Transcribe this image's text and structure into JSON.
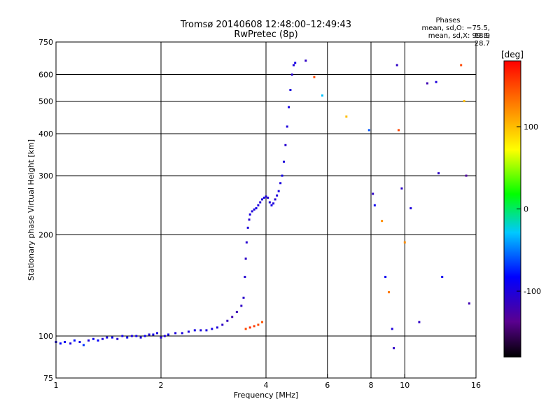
{
  "title": "Tromsø 20140608 12:48:00–12:49:43",
  "subtitle": "RwPretec (8p)",
  "stats": {
    "heading": "Phases",
    "line1": "mean, sd,O: −75.5, 18.9",
    "line2": "mean, sd,X:  99.8, 28.7"
  },
  "chart_data": {
    "type": "scatter",
    "x_scale": "log",
    "y_scale": "log",
    "xlabel": "Frequency [MHz]",
    "ylabel": "Stationary phase Virtual Height [km]",
    "xlim": [
      1,
      16
    ],
    "ylim": [
      75,
      750
    ],
    "xticks": [
      1,
      2,
      4,
      6,
      8,
      10,
      16
    ],
    "yticks": [
      75,
      100,
      200,
      300,
      400,
      500,
      600,
      750
    ],
    "grid_x": [
      2,
      4,
      6,
      8,
      10
    ],
    "grid_y": [
      100,
      200,
      300,
      400,
      500,
      600
    ],
    "colorbar": {
      "label": "[deg]",
      "ticks": [
        -100,
        0,
        100
      ],
      "range": [
        -180,
        180
      ],
      "colors": [
        "#000000",
        "#5a0090",
        "#0000ff",
        "#00c8ff",
        "#00ff00",
        "#ffff00",
        "#ff8000",
        "#ff0000"
      ]
    },
    "series": [
      {
        "mode": "E-layer trace",
        "points": [
          [
            1.0,
            96,
            -95
          ],
          [
            1.03,
            95,
            -85
          ],
          [
            1.06,
            96,
            -90
          ],
          [
            1.1,
            95,
            -100
          ],
          [
            1.13,
            97,
            -80
          ],
          [
            1.17,
            96,
            -95
          ],
          [
            1.2,
            94,
            -70
          ],
          [
            1.24,
            97,
            -100
          ],
          [
            1.28,
            98,
            -90
          ],
          [
            1.32,
            97,
            -85
          ],
          [
            1.36,
            98,
            -100
          ],
          [
            1.4,
            99,
            -95
          ],
          [
            1.45,
            99,
            -90
          ],
          [
            1.5,
            98,
            -105
          ],
          [
            1.55,
            100,
            -95
          ],
          [
            1.6,
            99,
            -88
          ],
          [
            1.65,
            100,
            -100
          ],
          [
            1.7,
            100,
            -92
          ],
          [
            1.75,
            99,
            -97
          ],
          [
            1.8,
            100,
            -90
          ],
          [
            1.85,
            101,
            -100
          ],
          [
            1.9,
            101,
            -95
          ],
          [
            1.95,
            102,
            -98
          ],
          [
            2.0,
            99,
            -102
          ],
          [
            2.05,
            100,
            -100
          ],
          [
            2.1,
            101,
            -95
          ],
          [
            2.2,
            102,
            -100
          ],
          [
            2.3,
            102,
            -98
          ],
          [
            2.4,
            103,
            -100
          ],
          [
            2.5,
            104,
            -95
          ],
          [
            2.6,
            104,
            -100
          ],
          [
            2.7,
            104,
            -98
          ],
          [
            2.8,
            105,
            -95
          ],
          [
            2.9,
            106,
            -100
          ],
          [
            3.0,
            108,
            -110
          ],
          [
            3.1,
            111,
            -115
          ],
          [
            3.2,
            114,
            -120
          ],
          [
            3.3,
            118,
            -118
          ],
          [
            3.4,
            123,
            -110
          ]
        ]
      },
      {
        "mode": "F-layer trace",
        "points": [
          [
            3.45,
            130,
            -108
          ],
          [
            3.48,
            150,
            -105
          ],
          [
            3.5,
            170,
            -110
          ],
          [
            3.52,
            190,
            -105
          ],
          [
            3.55,
            210,
            -100
          ],
          [
            3.58,
            222,
            -105
          ],
          [
            3.6,
            230,
            -98
          ],
          [
            3.65,
            235,
            -102
          ],
          [
            3.7,
            238,
            -100
          ],
          [
            3.75,
            240,
            -95
          ],
          [
            3.8,
            245,
            -100
          ],
          [
            3.85,
            250,
            -105
          ],
          [
            3.9,
            255,
            -100
          ],
          [
            3.95,
            258,
            -95
          ],
          [
            4.0,
            260,
            -100
          ],
          [
            4.05,
            258,
            -105
          ],
          [
            4.1,
            250,
            -100
          ],
          [
            4.15,
            245,
            -95
          ],
          [
            4.2,
            248,
            -100
          ],
          [
            4.25,
            255,
            -105
          ],
          [
            4.3,
            262,
            -100
          ],
          [
            4.35,
            270,
            -98
          ],
          [
            4.4,
            285,
            -100
          ],
          [
            4.45,
            300,
            -95
          ],
          [
            4.5,
            330,
            -100
          ],
          [
            4.55,
            370,
            -105
          ],
          [
            4.6,
            420,
            -100
          ],
          [
            4.65,
            480,
            -95
          ],
          [
            4.7,
            540,
            -100
          ],
          [
            4.75,
            600,
            -105
          ],
          [
            4.8,
            640,
            -100
          ],
          [
            4.85,
            650,
            -95
          ]
        ]
      },
      {
        "mode": "low trace (red)",
        "points": [
          [
            3.5,
            105,
            150
          ],
          [
            3.6,
            106,
            160
          ],
          [
            3.7,
            107,
            155
          ],
          [
            3.8,
            108,
            150
          ],
          [
            3.9,
            110,
            145
          ]
        ]
      },
      {
        "mode": "scattered echoes",
        "points": [
          [
            5.2,
            660,
            -110
          ],
          [
            5.5,
            590,
            150
          ],
          [
            5.8,
            520,
            -30
          ],
          [
            6.8,
            450,
            100
          ],
          [
            7.9,
            410,
            -60
          ],
          [
            8.1,
            265,
            -110
          ],
          [
            8.2,
            245,
            -90
          ],
          [
            8.6,
            220,
            120
          ],
          [
            8.8,
            150,
            -90
          ],
          [
            9.0,
            135,
            130
          ],
          [
            9.2,
            105,
            -100
          ],
          [
            9.3,
            92,
            -110
          ],
          [
            9.5,
            640,
            -110
          ],
          [
            9.6,
            410,
            150
          ],
          [
            9.8,
            275,
            -110
          ],
          [
            10.0,
            190,
            120
          ],
          [
            10.4,
            240,
            -100
          ],
          [
            11.0,
            110,
            -110
          ],
          [
            11.6,
            565,
            -120
          ],
          [
            12.3,
            570,
            -100
          ],
          [
            12.5,
            305,
            -110
          ],
          [
            12.8,
            150,
            -90
          ],
          [
            14.5,
            640,
            150
          ],
          [
            14.8,
            500,
            100
          ],
          [
            15.0,
            300,
            -130
          ],
          [
            15.3,
            125,
            -120
          ]
        ]
      }
    ]
  }
}
